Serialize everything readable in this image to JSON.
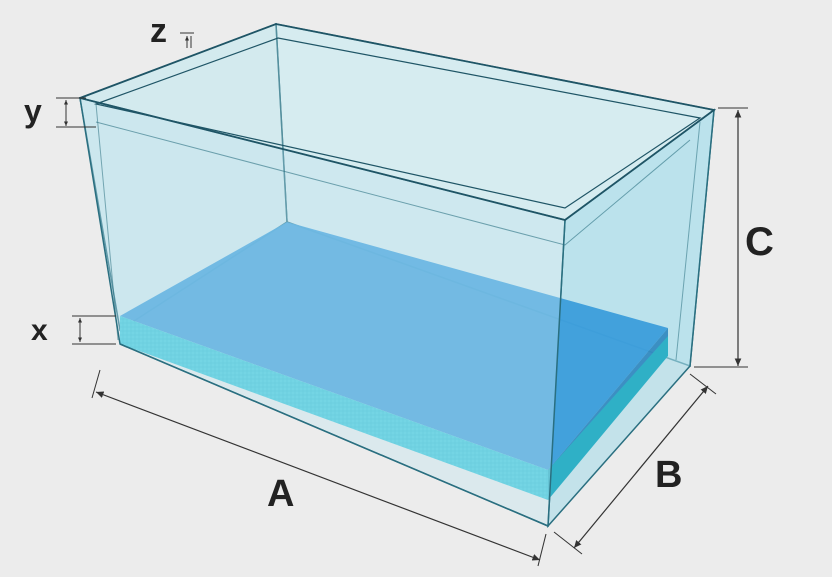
{
  "diagram": {
    "labels": {
      "z": "z",
      "y": "y",
      "x": "x",
      "A": "A",
      "B": "B",
      "C": "C"
    },
    "colors": {
      "background": "#ececec",
      "glass": "#bfe6ee",
      "glass_edge": "#2a6f80",
      "water": "#3a9fdc",
      "base": "#3ec8dc",
      "dimension": "#333333"
    }
  }
}
